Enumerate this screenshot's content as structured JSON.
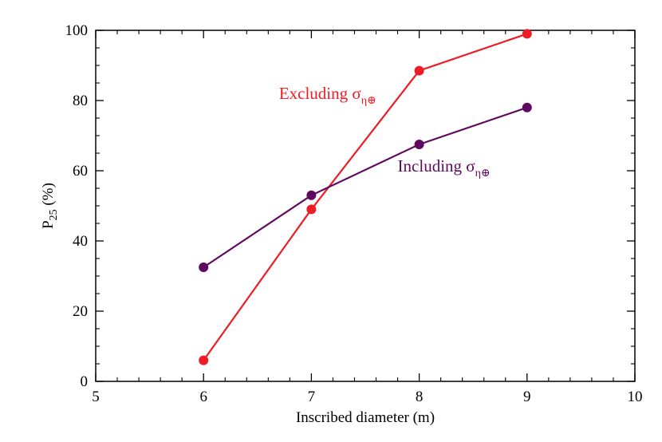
{
  "chart_data": {
    "type": "line",
    "xlabel": "Inscribed diameter (m)",
    "ylabel": {
      "base": "P",
      "sub": "25",
      "rest": " (%)"
    },
    "xlim": [
      5,
      10
    ],
    "ylim": [
      0,
      100
    ],
    "x_ticks": [
      "5",
      "6",
      "7",
      "8",
      "9",
      "10"
    ],
    "y_ticks": [
      "0",
      "20",
      "40",
      "60",
      "80",
      "100"
    ],
    "grid": false,
    "legend": "none",
    "series": [
      {
        "key": "excluding",
        "color": "#ee1c25",
        "x": [
          6,
          7,
          8,
          9
        ],
        "values": [
          6,
          49,
          88.5,
          99
        ]
      },
      {
        "key": "including",
        "color": "#5e0a5e",
        "x": [
          6,
          7,
          8,
          9
        ],
        "values": [
          32.5,
          53,
          67.5,
          78
        ]
      }
    ],
    "annotations": [
      {
        "key": "excluding",
        "text": "Excluding σ",
        "sub": "η⊕",
        "color": "#ee1c25",
        "x": 6.7,
        "y": 80.5
      },
      {
        "key": "including",
        "text": "Including σ",
        "sub": "η⊕",
        "color": "#5e0a5e",
        "x": 7.8,
        "y": 59.8
      }
    ]
  }
}
